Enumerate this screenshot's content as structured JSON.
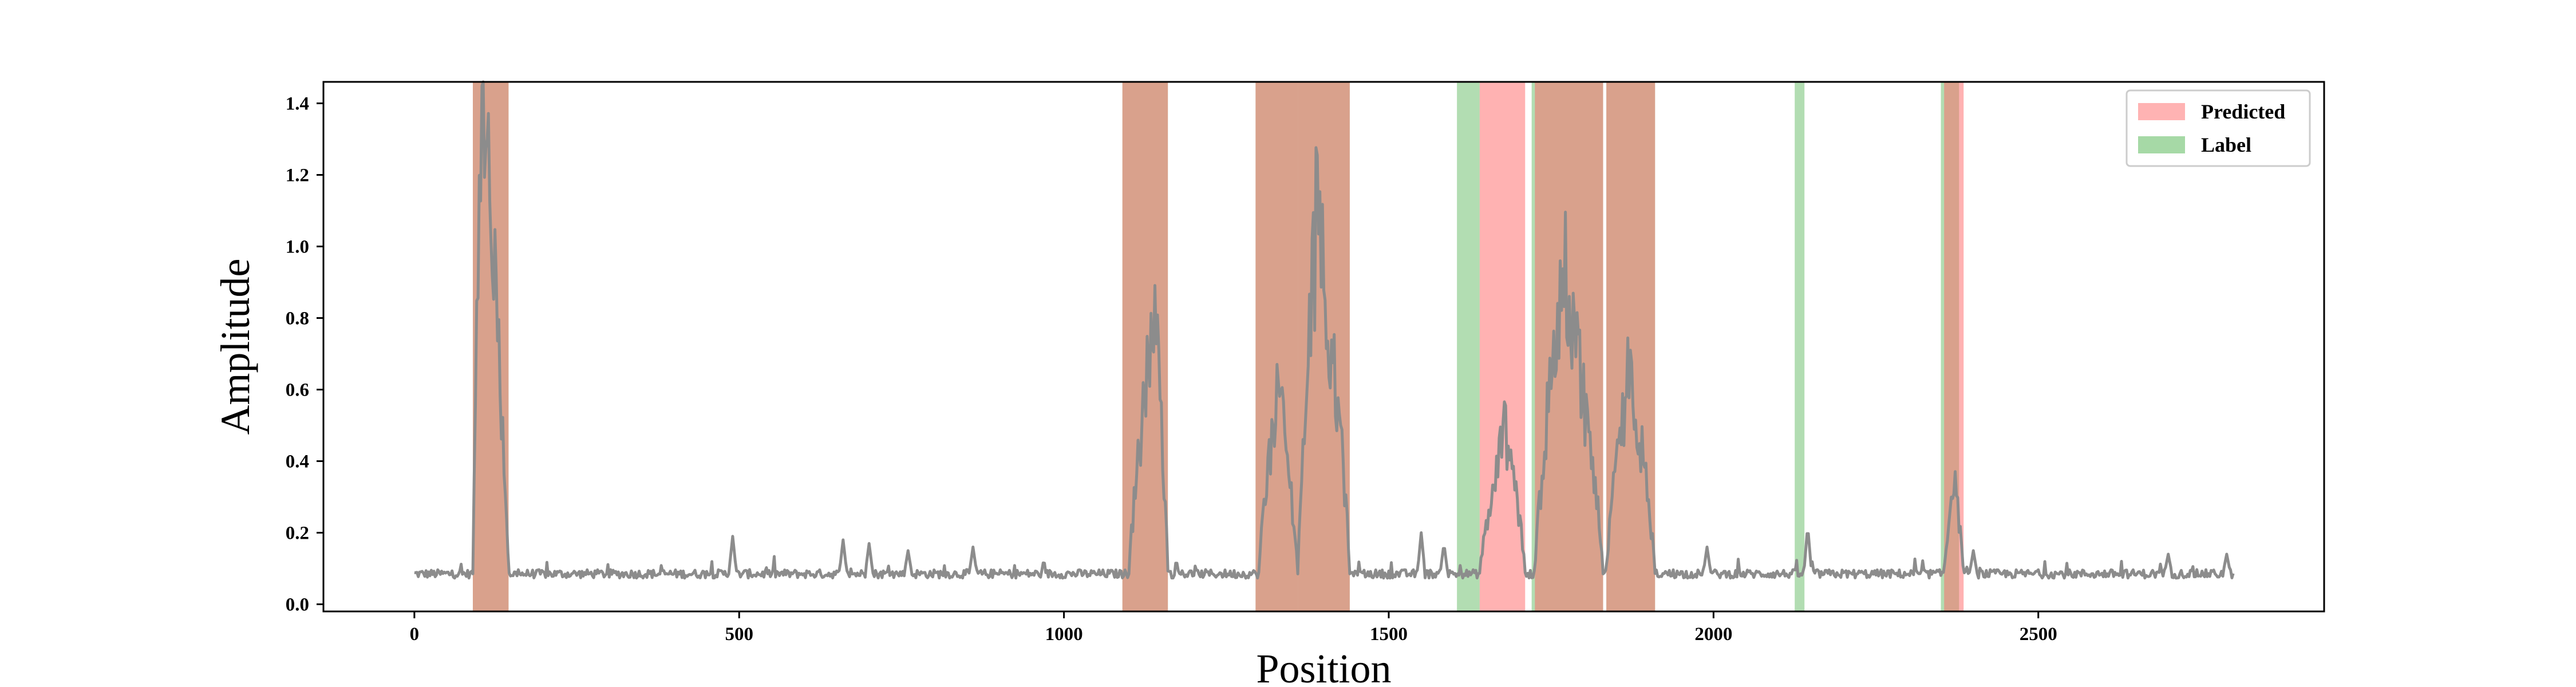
{
  "chart_data": {
    "type": "line",
    "xlabel": "Position",
    "ylabel": "Amplitude",
    "xlim": [
      -140,
      2940
    ],
    "ylim": [
      -0.02,
      1.46
    ],
    "x_ticks": [
      0,
      500,
      1000,
      1500,
      2000,
      2500
    ],
    "y_ticks": [
      0.0,
      0.2,
      0.4,
      0.6,
      0.8,
      1.0,
      1.2,
      1.4
    ],
    "legend_position": "top-right",
    "legend": [
      {
        "label": "Predicted",
        "color": "#ff9999"
      },
      {
        "label": "Label",
        "color": "#88cc88"
      }
    ],
    "colors": {
      "signal": "#8c8c8c",
      "predicted": "#f4a6a6",
      "label": "#a3d6a3",
      "overlap": "#b09f7a"
    },
    "predicted_regions": [
      [
        90,
        145
      ],
      [
        1090,
        1160
      ],
      [
        1295,
        1360
      ],
      [
        1360,
        1440
      ],
      [
        1640,
        1710
      ],
      [
        1725,
        1830
      ],
      [
        1835,
        1910
      ],
      [
        2355,
        2385
      ]
    ],
    "label_regions": [
      [
        90,
        145
      ],
      [
        1090,
        1160
      ],
      [
        1295,
        1360
      ],
      [
        1360,
        1440
      ],
      [
        1605,
        1640
      ],
      [
        1720,
        1830
      ],
      [
        1835,
        1910
      ],
      [
        2125,
        2140
      ],
      [
        2350,
        2378
      ]
    ],
    "signal": {
      "baseline": 0.085,
      "noise": 0.012,
      "length": 2800,
      "spikes": [
        [
          490,
          0.19
        ],
        [
          660,
          0.18
        ],
        [
          700,
          0.17
        ],
        [
          760,
          0.15
        ],
        [
          860,
          0.16
        ],
        [
          1550,
          0.2
        ],
        [
          1585,
          0.17
        ],
        [
          1990,
          0.16
        ],
        [
          2145,
          0.22
        ],
        [
          2400,
          0.15
        ],
        [
          2700,
          0.14
        ],
        [
          2790,
          0.14
        ]
      ],
      "events": [
        {
          "start": 90,
          "peak": 105,
          "end": 145,
          "max": 1.39
        },
        {
          "start": 1100,
          "peak": 1140,
          "end": 1160,
          "max": 0.8
        },
        {
          "start": 1300,
          "peak": 1330,
          "end": 1360,
          "max": 0.62
        },
        {
          "start": 1360,
          "peak": 1390,
          "end": 1440,
          "max": 1.1
        },
        {
          "start": 1640,
          "peak": 1680,
          "end": 1710,
          "max": 0.49
        },
        {
          "start": 1725,
          "peak": 1770,
          "end": 1830,
          "max": 0.95
        },
        {
          "start": 1835,
          "peak": 1870,
          "end": 1910,
          "max": 0.67
        },
        {
          "start": 2355,
          "peak": 2370,
          "end": 2385,
          "max": 0.35
        }
      ]
    }
  }
}
